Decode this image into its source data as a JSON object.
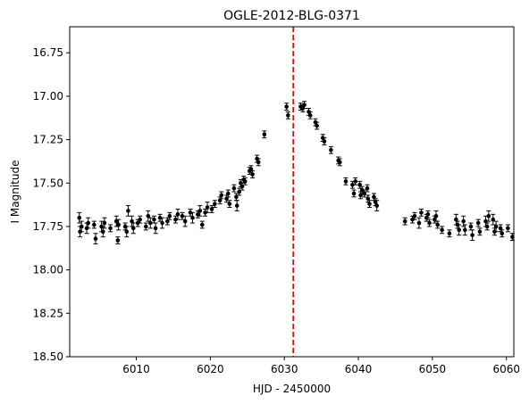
{
  "chart_data": {
    "type": "scatter",
    "title": "OGLE-2012-BLG-0371",
    "xlabel": "HJD - 2450000",
    "ylabel": "I Magnitude",
    "xlim": [
      6001.0,
      6061.0
    ],
    "ylim": [
      18.5,
      16.6
    ],
    "y_inverted": true,
    "xticks": [
      6010,
      6020,
      6030,
      6040,
      6050,
      6060
    ],
    "yticks": [
      16.75,
      17.0,
      17.25,
      17.5,
      17.75,
      18.0,
      18.25,
      18.5
    ],
    "ytick_labels": [
      "16.75",
      "17.00",
      "17.25",
      "17.50",
      "17.75",
      "18.00",
      "18.25",
      "18.50"
    ],
    "grid": false,
    "marker_color": "#000000",
    "vline": {
      "x": 6031.2,
      "color": "#dd0000",
      "style": "dashed"
    },
    "series": [
      {
        "points": [
          [
            6002.3,
            17.7,
            0.03
          ],
          [
            6002.4,
            17.78,
            0.03
          ],
          [
            6002.6,
            17.75,
            0.03
          ],
          [
            6003.3,
            17.76,
            0.03
          ],
          [
            6003.5,
            17.73,
            0.03
          ],
          [
            6004.3,
            17.74,
            0.02
          ],
          [
            6004.5,
            17.82,
            0.03
          ],
          [
            6005.3,
            17.75,
            0.03
          ],
          [
            6005.5,
            17.78,
            0.03
          ],
          [
            6005.7,
            17.73,
            0.03
          ],
          [
            6006.5,
            17.76,
            0.02
          ],
          [
            6007.3,
            17.72,
            0.03
          ],
          [
            6007.5,
            17.83,
            0.02
          ],
          [
            6007.6,
            17.74,
            0.03
          ],
          [
            6008.5,
            17.75,
            0.02
          ],
          [
            6008.7,
            17.78,
            0.03
          ],
          [
            6008.9,
            17.66,
            0.03
          ],
          [
            6009.4,
            17.72,
            0.03
          ],
          [
            6009.6,
            17.76,
            0.03
          ],
          [
            6010.2,
            17.73,
            0.02
          ],
          [
            6010.5,
            17.71,
            0.02
          ],
          [
            6011.3,
            17.75,
            0.02
          ],
          [
            6011.6,
            17.69,
            0.03
          ],
          [
            6011.9,
            17.73,
            0.03
          ],
          [
            6012.4,
            17.71,
            0.02
          ],
          [
            6012.6,
            17.76,
            0.03
          ],
          [
            6013.2,
            17.7,
            0.02
          ],
          [
            6013.5,
            17.73,
            0.03
          ],
          [
            6014.2,
            17.72,
            0.02
          ],
          [
            6014.5,
            17.69,
            0.02
          ],
          [
            6015.3,
            17.71,
            0.02
          ],
          [
            6015.6,
            17.68,
            0.03
          ],
          [
            6016.2,
            17.69,
            0.02
          ],
          [
            6016.6,
            17.72,
            0.03
          ],
          [
            6017.3,
            17.67,
            0.02
          ],
          [
            6017.6,
            17.7,
            0.03
          ],
          [
            6018.3,
            17.68,
            0.02
          ],
          [
            6018.6,
            17.66,
            0.03
          ],
          [
            6018.9,
            17.74,
            0.02
          ],
          [
            6019.3,
            17.67,
            0.02
          ],
          [
            6019.6,
            17.64,
            0.03
          ],
          [
            6020.2,
            17.65,
            0.02
          ],
          [
            6020.6,
            17.62,
            0.02
          ],
          [
            6021.3,
            17.6,
            0.02
          ],
          [
            6021.5,
            17.57,
            0.02
          ],
          [
            6022.2,
            17.59,
            0.02
          ],
          [
            6022.4,
            17.56,
            0.02
          ],
          [
            6022.6,
            17.62,
            0.02
          ],
          [
            6023.2,
            17.53,
            0.02
          ],
          [
            6023.5,
            17.58,
            0.02
          ],
          [
            6023.6,
            17.63,
            0.03
          ],
          [
            6023.9,
            17.55,
            0.02
          ],
          [
            6024.1,
            17.5,
            0.02
          ],
          [
            6024.3,
            17.52,
            0.02
          ],
          [
            6024.5,
            17.48,
            0.02
          ],
          [
            6024.7,
            17.49,
            0.02
          ],
          [
            6025.3,
            17.43,
            0.02
          ],
          [
            6025.5,
            17.42,
            0.02
          ],
          [
            6025.7,
            17.45,
            0.02
          ],
          [
            6026.3,
            17.36,
            0.02
          ],
          [
            6026.5,
            17.38,
            0.02
          ],
          [
            6027.3,
            17.22,
            0.02
          ],
          [
            6030.3,
            17.06,
            0.02
          ],
          [
            6030.5,
            17.11,
            0.02
          ],
          [
            6032.2,
            17.06,
            0.02
          ],
          [
            6032.5,
            17.07,
            0.02
          ],
          [
            6032.7,
            17.05,
            0.02
          ],
          [
            6033.3,
            17.09,
            0.02
          ],
          [
            6033.5,
            17.11,
            0.02
          ],
          [
            6034.2,
            17.15,
            0.02
          ],
          [
            6034.4,
            17.17,
            0.02
          ],
          [
            6035.2,
            17.24,
            0.02
          ],
          [
            6035.4,
            17.26,
            0.02
          ],
          [
            6036.3,
            17.31,
            0.02
          ],
          [
            6037.3,
            17.37,
            0.02
          ],
          [
            6037.5,
            17.38,
            0.02
          ],
          [
            6038.3,
            17.49,
            0.02
          ],
          [
            6039.2,
            17.51,
            0.02
          ],
          [
            6039.4,
            17.56,
            0.02
          ],
          [
            6039.6,
            17.49,
            0.02
          ],
          [
            6040.2,
            17.51,
            0.02
          ],
          [
            6040.3,
            17.57,
            0.02
          ],
          [
            6040.5,
            17.54,
            0.02
          ],
          [
            6040.8,
            17.56,
            0.02
          ],
          [
            6041.2,
            17.53,
            0.02
          ],
          [
            6041.3,
            17.59,
            0.02
          ],
          [
            6041.5,
            17.62,
            0.02
          ],
          [
            6042.1,
            17.58,
            0.02
          ],
          [
            6042.3,
            17.61,
            0.02
          ],
          [
            6042.5,
            17.63,
            0.03
          ],
          [
            6046.3,
            17.72,
            0.02
          ],
          [
            6047.3,
            17.71,
            0.02
          ],
          [
            6047.6,
            17.69,
            0.02
          ],
          [
            6048.2,
            17.73,
            0.03
          ],
          [
            6048.5,
            17.67,
            0.02
          ],
          [
            6049.2,
            17.7,
            0.02
          ],
          [
            6049.4,
            17.68,
            0.02
          ],
          [
            6049.6,
            17.73,
            0.02
          ],
          [
            6050.3,
            17.71,
            0.02
          ],
          [
            6050.5,
            17.69,
            0.03
          ],
          [
            6050.7,
            17.74,
            0.02
          ],
          [
            6051.3,
            17.77,
            0.02
          ],
          [
            6052.3,
            17.79,
            0.02
          ],
          [
            6053.2,
            17.71,
            0.03
          ],
          [
            6053.4,
            17.74,
            0.02
          ],
          [
            6053.6,
            17.77,
            0.03
          ],
          [
            6054.2,
            17.72,
            0.03
          ],
          [
            6054.4,
            17.77,
            0.03
          ],
          [
            6055.2,
            17.75,
            0.02
          ],
          [
            6055.4,
            17.8,
            0.03
          ],
          [
            6056.2,
            17.73,
            0.02
          ],
          [
            6056.4,
            17.78,
            0.02
          ],
          [
            6057.2,
            17.72,
            0.03
          ],
          [
            6057.4,
            17.75,
            0.02
          ],
          [
            6057.6,
            17.69,
            0.03
          ],
          [
            6058.2,
            17.71,
            0.03
          ],
          [
            6058.4,
            17.78,
            0.02
          ],
          [
            6058.6,
            17.75,
            0.03
          ],
          [
            6059.2,
            17.76,
            0.02
          ],
          [
            6059.4,
            17.79,
            0.02
          ],
          [
            6060.2,
            17.76,
            0.02
          ],
          [
            6060.8,
            17.81,
            0.02
          ]
        ]
      }
    ]
  }
}
